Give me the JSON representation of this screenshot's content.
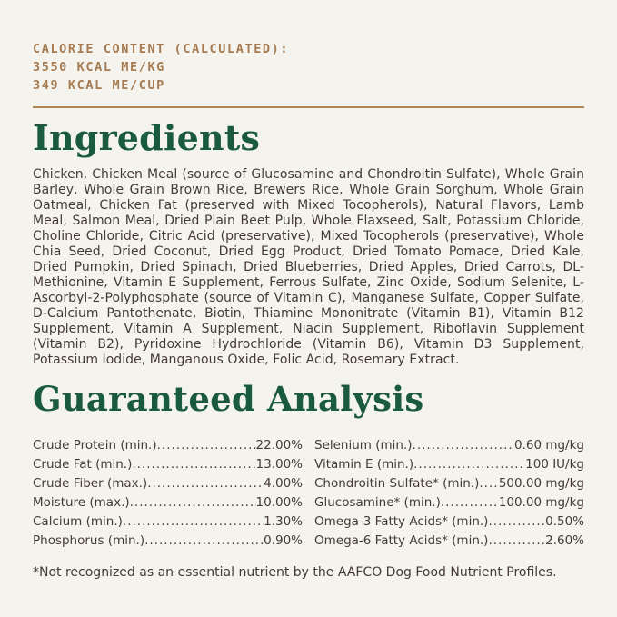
{
  "colors": {
    "background": "#f4f3ee",
    "accent_brown": "#a67b51",
    "divider_brown": "#ae8557",
    "heading_green": "#1a5b40",
    "body_text": "#453b33"
  },
  "calorie_content": {
    "heading": "CALORIE CONTENT (CALCULATED):",
    "kcal_me_kg": "3550 KCAL ME/KG",
    "kcal_me_cup": "349 KCAL ME/CUP"
  },
  "ingredients": {
    "title": "Ingredients",
    "text": "Chicken, Chicken Meal (source of Glucosamine and Chondroitin Sulfate), Whole Grain Barley, Whole Grain Brown Rice, Brewers Rice, Whole Grain Sorghum, Whole Grain Oatmeal, Chicken Fat (preserved with Mixed Tocopherols), Natural Flavors, Lamb Meal, Salmon Meal, Dried Plain Beet Pulp, Whole Flaxseed, Salt, Potassium Chloride, Choline Chloride, Citric Acid (preservative), Mixed Tocopherols (preservative), Whole Chia Seed, Dried Coconut, Dried Egg Product, Dried Tomato Pomace, Dried Kale, Dried Pumpkin, Dried Spinach, Dried Blueberries, Dried Apples, Dried Carrots, DL-Methionine, Vitamin E Supplement, Ferrous Sulfate, Zinc Oxide, Sodium Selenite, L-Ascorbyl-2-Polyphosphate (source of Vitamin C), Manganese Sulfate, Copper Sulfate, D-Calcium Pantothenate, Biotin, Thiamine Mononitrate (Vitamin B1), Vitamin B12 Supplement, Vitamin A Supplement, Niacin Supplement, Riboflavin Supplement (Vitamin B2), Pyridoxine Hydrochloride (Vitamin B6), Vitamin D3 Supplement, Potassium Iodide, Manganous Oxide, Folic Acid, Rosemary Extract."
  },
  "guaranteed_analysis": {
    "title": "Guaranteed Analysis",
    "left_column": [
      {
        "label": "Crude Protein (min.)",
        "value": "22.00%"
      },
      {
        "label": "Crude Fat (min.)",
        "value": "13.00%"
      },
      {
        "label": "Crude Fiber (max.)",
        "value": "4.00%"
      },
      {
        "label": "Moisture (max.)",
        "value": "10.00%"
      },
      {
        "label": "Calcium (min.)",
        "value": "1.30%"
      },
      {
        "label": "Phosphorus (min.)",
        "value": "0.90%"
      }
    ],
    "right_column": [
      {
        "label": "Selenium (min.)",
        "value": "0.60 mg/kg"
      },
      {
        "label": "Vitamin E (min.)",
        "value": "100 IU/kg"
      },
      {
        "label": "Chondroitin Sulfate* (min.)",
        "value": "500.00 mg/kg"
      },
      {
        "label": "Glucosamine* (min.)",
        "value": "100.00 mg/kg"
      },
      {
        "label": "Omega-3 Fatty Acids* (min.)",
        "value": "0.50%"
      },
      {
        "label": "Omega-6 Fatty Acids* (min.)",
        "value": "2.60%"
      }
    ]
  },
  "footnote": "*Not recognized as an essential nutrient by the AAFCO Dog Food Nutrient Profiles."
}
